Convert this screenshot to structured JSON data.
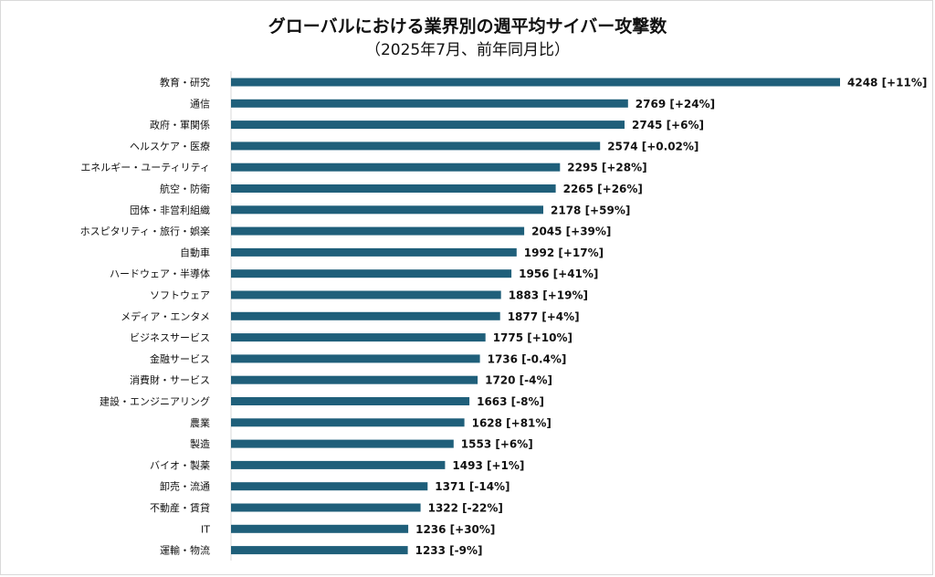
{
  "chart_data": {
    "type": "bar",
    "orientation": "horizontal",
    "title": "グローバルにおける業界別の週平均サイバー攻撃数",
    "subtitle": "（2025年7月、前年同月比）",
    "bar_color": "#1f5f7a",
    "xlim": [
      0,
      4248
    ],
    "grid": false,
    "legend": "none",
    "categories": [
      "教育・研究",
      "通信",
      "政府・軍関係",
      "ヘルスケア・医療",
      "エネルギー・ユーティリティ",
      "航空・防衛",
      "団体・非営利組織",
      "ホスピタリティ・旅行・娯楽",
      "自動車",
      "ハードウェア・半導体",
      "ソフトウェア",
      "メディア・エンタメ",
      "ビジネスサービス",
      "金融サービス",
      "消費財・サービス",
      "建設・エンジニアリング",
      "農業",
      "製造",
      "バイオ・製薬",
      "卸売・流通",
      "不動産・賃貸",
      "IT",
      "運輸・物流"
    ],
    "values": [
      4248,
      2769,
      2745,
      2574,
      2295,
      2265,
      2178,
      2045,
      1992,
      1956,
      1883,
      1877,
      1775,
      1736,
      1720,
      1663,
      1628,
      1553,
      1493,
      1371,
      1322,
      1236,
      1233
    ],
    "data_labels": [
      "4248 [+11%]",
      "2769 [+24%]",
      "2745 [+6%]",
      "2574 [+0.02%]",
      "2295 [+28%]",
      "2265 [+26%]",
      "2178 [+59%]",
      "2045 [+39%]",
      "1992 [+17%]",
      "1956 [+41%]",
      "1883 [+19%]",
      "1877 [+4%]",
      "1775 [+10%]",
      "1736 [-0.4%]",
      "1720 [-4%]",
      "1663 [-8%]",
      "1628 [+81%]",
      "1553 [+6%]",
      "1493 [+1%]",
      "1371 [-14%]",
      "1322 [-22%]",
      "1236 [+30%]",
      "1233 [-9%]"
    ]
  }
}
